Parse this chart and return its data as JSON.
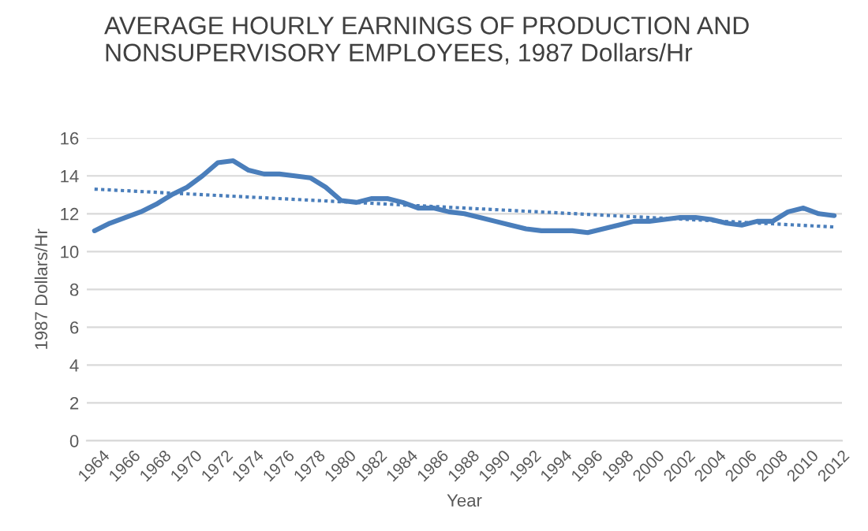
{
  "chart_data": {
    "type": "line",
    "title": "AVERAGE HOURLY EARNINGS OF PRODUCTION AND\nNONSUPERVISORY EMPLOYEES, 1987 Dollars/Hr",
    "xlabel": "Year",
    "ylabel": "1987 Dollars/Hr",
    "xlim": [
      1963.5,
      2012.5
    ],
    "xticks": [
      1964,
      1966,
      1968,
      1970,
      1972,
      1974,
      1976,
      1978,
      1980,
      1982,
      1984,
      1986,
      1988,
      1990,
      1992,
      1994,
      1996,
      1998,
      2000,
      2002,
      2004,
      2006,
      2008,
      2010,
      2012
    ],
    "ylim": [
      0,
      16
    ],
    "yticks": [
      0,
      2,
      4,
      6,
      8,
      10,
      12,
      14,
      16
    ],
    "grid": "y",
    "legend": false,
    "series": [
      {
        "color": "#4a7ebb",
        "line_style": "solid",
        "x": [
          1964,
          1965,
          1966,
          1967,
          1968,
          1969,
          1970,
          1971,
          1972,
          1973,
          1974,
          1975,
          1976,
          1977,
          1978,
          1979,
          1980,
          1981,
          1982,
          1983,
          1984,
          1985,
          1986,
          1987,
          1988,
          1989,
          1990,
          1991,
          1992,
          1993,
          1994,
          1995,
          1996,
          1997,
          1998,
          1999,
          2000,
          2001,
          2002,
          2003,
          2004,
          2005,
          2006,
          2007,
          2008,
          2009,
          2010,
          2011,
          2012
        ],
        "values": [
          11.1,
          11.5,
          11.8,
          12.1,
          12.5,
          13.0,
          13.4,
          14.0,
          14.7,
          14.8,
          14.3,
          14.1,
          14.1,
          14.0,
          13.9,
          13.4,
          12.7,
          12.6,
          12.8,
          12.8,
          12.6,
          12.3,
          12.3,
          12.1,
          12.0,
          11.8,
          11.6,
          11.4,
          11.2,
          11.1,
          11.1,
          11.1,
          11.0,
          11.2,
          11.4,
          11.6,
          11.6,
          11.7,
          11.8,
          11.8,
          11.7,
          11.5,
          11.4,
          11.6,
          11.6,
          12.1,
          12.3,
          12.0,
          11.9
        ]
      },
      {
        "color": "#4a7ebb",
        "line_style": "dotted",
        "x": [
          1964,
          2012
        ],
        "values": [
          13.3,
          11.3
        ]
      }
    ]
  }
}
